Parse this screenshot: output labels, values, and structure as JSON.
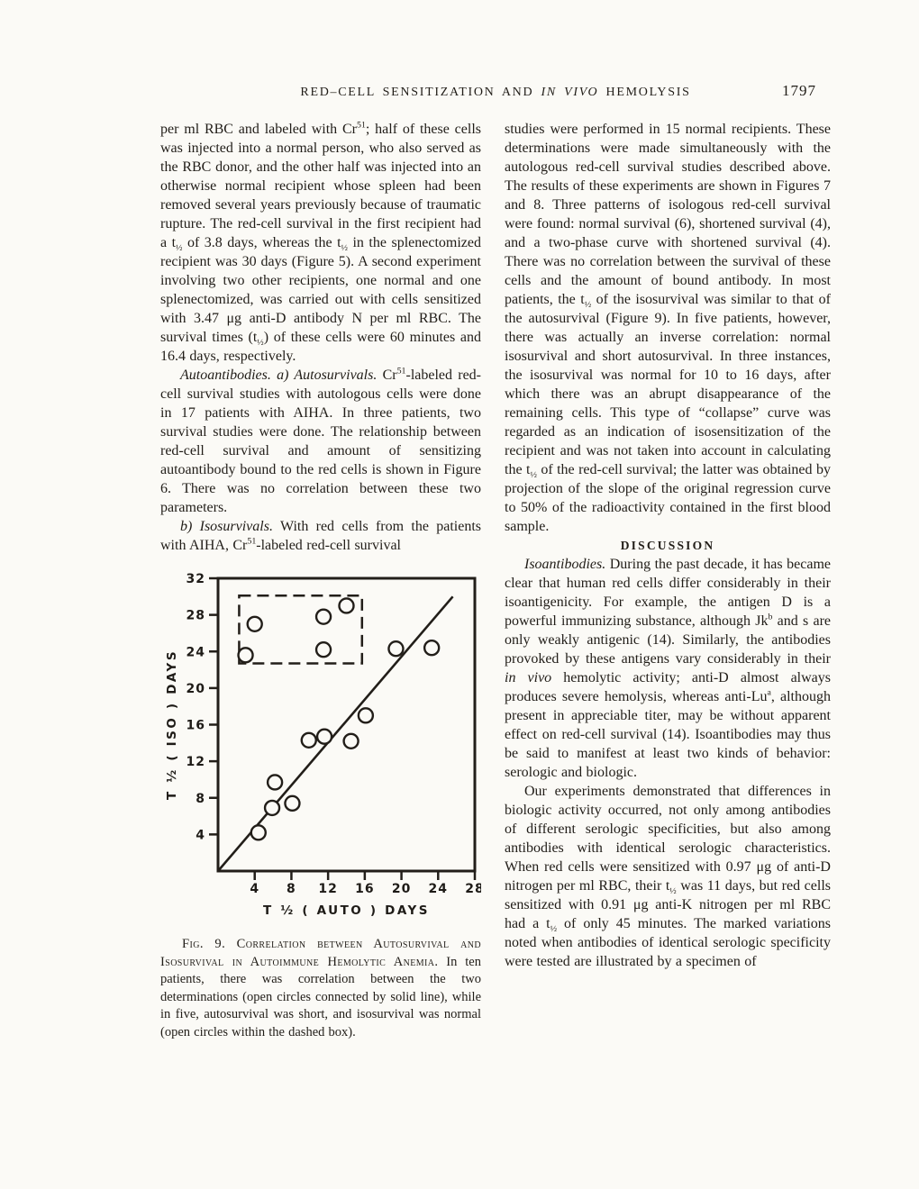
{
  "colors": {
    "ink": "#221e19",
    "paper": "#fbfaf6"
  },
  "page": {
    "running_head": {
      "title_segments": [
        {
          "t": "RED–CELL SENSITIZATION AND "
        },
        {
          "t": "IN VIVO",
          "s": "i"
        },
        {
          "t": " HEMOLYSIS"
        }
      ],
      "page_number": "1797"
    },
    "left_column": {
      "paragraphs": [
        [
          {
            "t": "per ml RBC and labeled with Cr"
          },
          {
            "t": "51",
            "s": "sup"
          },
          {
            "t": "; half of these cells was injected into a normal person, who also served as the RBC donor, and the other half was injected into an otherwise normal recipient whose spleen had been removed several years previously because of traumatic rupture. The red-cell survival in the first recipient had a t"
          },
          {
            "t": "½",
            "s": "sub"
          },
          {
            "t": " of 3.8 days, whereas the t"
          },
          {
            "t": "½",
            "s": "sub"
          },
          {
            "t": " in the splenectomized recipient was 30 days (Figure 5). A second experiment involving two other recipients, one normal and one splenectomized, was carried out with cells sensitized with 3.47 μg anti-D antibody N per ml RBC. The survival times (t"
          },
          {
            "t": "½",
            "s": "sub"
          },
          {
            "t": ") of these cells were 60 minutes and 16.4 days, respectively."
          }
        ],
        [
          {
            "t": "Autoantibodies.  a) Autosurvivals.",
            "s": "i"
          },
          {
            "t": " Cr"
          },
          {
            "t": "51",
            "s": "sup"
          },
          {
            "t": "-labeled red-cell survival studies with autologous cells were done in 17 patients with AIHA. In three patients, two survival studies were done. The relationship between red-cell survival and amount of sensitizing autoantibody bound to the red cells is shown in Figure 6. There was no correlation between these two parameters."
          }
        ],
        [
          {
            "t": "b) Isosurvivals.",
            "s": "i"
          },
          {
            "t": " With red cells from the patients with AIHA, Cr"
          },
          {
            "t": "51",
            "s": "sup"
          },
          {
            "t": "-labeled red-cell survival"
          }
        ]
      ]
    },
    "right_column": {
      "heading": "DISCUSSION",
      "paragraphs": [
        [
          {
            "t": "studies were performed in 15 normal recipients. These determinations were made simultaneously with the autologous red-cell survival studies described above. The results of these experiments are shown in Figures 7 and 8. Three patterns of isologous red-cell survival were found: normal survival (6), shortened survival (4), and a two-phase curve with shortened survival (4). There was no correlation between the survival of these cells and the amount of bound antibody. In most patients, the t"
          },
          {
            "t": "½",
            "s": "sub"
          },
          {
            "t": " of the isosurvival was similar to that of the autosurvival (Figure 9). In five patients, however, there was actually an inverse correlation: normal isosurvival and short autosurvival. In three instances, the isosurvival was normal for 10 to 16 days, after which there was an abrupt disappearance of the remaining cells. This type of “collapse” curve was regarded as an indication of isosensitization of the recipient and was not taken into account in calculating the t"
          },
          {
            "t": "½",
            "s": "sub"
          },
          {
            "t": " of the red-cell survival; the latter was obtained by projection of the slope of the original regression curve to 50% of the radioactivity contained in the first blood sample."
          }
        ],
        [
          {
            "t": "Isoantibodies.",
            "s": "i"
          },
          {
            "t": " During the past decade, it has became clear that human red cells differ considerably in their isoantigenicity. For example, the antigen D is a powerful immunizing substance, although Jk"
          },
          {
            "t": "b",
            "s": "sup"
          },
          {
            "t": " and s are only weakly antigenic (14). Similarly, the antibodies provoked by these antigens vary considerably in their "
          },
          {
            "t": "in vivo",
            "s": "i"
          },
          {
            "t": " hemolytic activity; anti-D almost always produces severe hemolysis, whereas anti-Lu"
          },
          {
            "t": "a",
            "s": "sup"
          },
          {
            "t": ", although present in appreciable titer, may be without apparent effect on red-cell survival (14). Isoantibodies may thus be said to manifest at least two kinds of behavior: serologic and biologic."
          }
        ],
        [
          {
            "t": "Our experiments demonstrated that differences in biologic activity occurred, not only among antibodies of different serologic specificities, but also among antibodies with identical serologic characteristics. When red cells were sensitized with 0.97 μg of anti-D nitrogen per ml RBC, their t"
          },
          {
            "t": "½",
            "s": "sub"
          },
          {
            "t": " was 11 days, but red cells sensitized with 0.91 μg anti-K nitrogen per ml RBC had a t"
          },
          {
            "t": "½",
            "s": "sub"
          },
          {
            "t": " of only 45 minutes. The marked variations noted when antibodies of identical serologic specificity were tested are illustrated by a specimen of"
          }
        ]
      ]
    },
    "figure": {
      "caption_segments": [
        {
          "t": "Fig. 9. Correlation between Autosurvival and Isosurvival in Autoimmune Hemolytic Anemia.",
          "s": "sc"
        },
        {
          "t": " In ten patients, there was correlation between the two determinations (open circles connected by solid line), while in five, autosurvival was short, and isosurvival was normal (open circles within the dashed box)."
        }
      ]
    }
  },
  "chart_data": {
    "type": "scatter",
    "title": "",
    "xlabel": "T ½ ( AUTO ) DAYS",
    "ylabel": "T ½ ( ISO ) DAYS",
    "xlim": [
      0,
      28
    ],
    "ylim": [
      0,
      32
    ],
    "xticks": [
      4,
      8,
      12,
      16,
      20,
      24,
      28
    ],
    "yticks": [
      4,
      8,
      12,
      16,
      20,
      24,
      28,
      32
    ],
    "grid": false,
    "legend": "none",
    "series": [
      {
        "name": "correlated autosurvival and isosurvival (10 patients, on solid line)",
        "marker": "open-circle",
        "points": [
          [
            4.4,
            4.2
          ],
          [
            5.9,
            6.9
          ],
          [
            6.2,
            9.7
          ],
          [
            8.1,
            7.4
          ],
          [
            9.9,
            14.3
          ],
          [
            11.6,
            14.7
          ],
          [
            14.5,
            14.2
          ],
          [
            16.1,
            17.0
          ],
          [
            19.4,
            24.3
          ],
          [
            23.3,
            24.4
          ]
        ]
      },
      {
        "name": "short autosurvival with normal isosurvival (5 patients, inside dashed box)",
        "marker": "open-circle",
        "points": [
          [
            3.0,
            23.6
          ],
          [
            4.0,
            27.0
          ],
          [
            11.5,
            24.2
          ],
          [
            11.5,
            27.8
          ],
          [
            14.0,
            29.0
          ]
        ]
      }
    ],
    "solid_line": {
      "from": [
        0,
        0
      ],
      "to": [
        25.6,
        30.0
      ]
    },
    "dashed_box": {
      "x": [
        2.3,
        15.7
      ],
      "y": [
        22.7,
        30.1
      ]
    }
  }
}
